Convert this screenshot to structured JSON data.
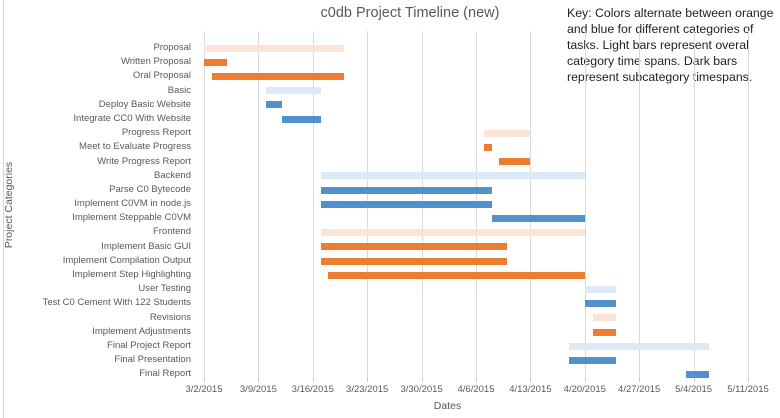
{
  "title": "c0db Project Timeline (new)",
  "key_note": {
    "lines": [
      "Key: Colors alternate between orange",
      "and blue for different categories of",
      "tasks. Light bars represent overal",
      "category time spans. Dark bars",
      "represent subcategory timespans."
    ]
  },
  "colors": {
    "orange": {
      "dark": "#ED7D31",
      "light": "#FBE3D5"
    },
    "blue": {
      "dark": "#5191CE",
      "light": "#DCE9F6"
    },
    "gridline": "#D9D9D9",
    "axis_text": "#595959",
    "title_text": "#595959",
    "key_text": "#1F1F1F"
  },
  "chart_data": {
    "type": "bar",
    "variant": "horizontal-gantt",
    "title": "c0db Project Timeline (new)",
    "xlabel": "Dates",
    "ylabel": "Project Categories",
    "legend": "none",
    "grid": "vertical-only",
    "x_domain": [
      "3/2/2015",
      "5/11/2015"
    ],
    "x_ticks": [
      "3/2/2015",
      "3/9/2015",
      "3/16/2015",
      "3/23/2015",
      "3/30/2015",
      "4/6/2015",
      "4/13/2015",
      "4/20/2015",
      "4/27/2015",
      "5/4/2015",
      "5/11/2015"
    ],
    "tasks": [
      {
        "label": "Proposal",
        "start": "3/2/2015",
        "end": "3/20/2015",
        "group": "orange",
        "shade": "light"
      },
      {
        "label": "Written Proposal",
        "start": "3/2/2015",
        "end": "3/5/2015",
        "group": "orange",
        "shade": "dark"
      },
      {
        "label": "Oral Proposal",
        "start": "3/3/2015",
        "end": "3/20/2015",
        "group": "orange",
        "shade": "dark"
      },
      {
        "label": "Basic",
        "start": "3/10/2015",
        "end": "3/17/2015",
        "group": "blue",
        "shade": "light"
      },
      {
        "label": "Deploy Basic Website",
        "start": "3/10/2015",
        "end": "3/12/2015",
        "group": "blue",
        "shade": "dark"
      },
      {
        "label": "Integrate CC0 With Website",
        "start": "3/12/2015",
        "end": "3/17/2015",
        "group": "blue",
        "shade": "dark"
      },
      {
        "label": "Progress Report",
        "start": "4/7/2015",
        "end": "4/13/2015",
        "group": "orange",
        "shade": "light"
      },
      {
        "label": "Meet to Evaluate Progress",
        "start": "4/7/2015",
        "end": "4/8/2015",
        "group": "orange",
        "shade": "dark"
      },
      {
        "label": "Write Progress Report",
        "start": "4/9/2015",
        "end": "4/13/2015",
        "group": "orange",
        "shade": "dark"
      },
      {
        "label": "Backend",
        "start": "3/17/2015",
        "end": "4/20/2015",
        "group": "blue",
        "shade": "light"
      },
      {
        "label": "Parse C0 Bytecode",
        "start": "3/17/2015",
        "end": "4/8/2015",
        "group": "blue",
        "shade": "dark"
      },
      {
        "label": "Implement C0VM in node.js",
        "start": "3/17/2015",
        "end": "4/8/2015",
        "group": "blue",
        "shade": "dark"
      },
      {
        "label": "Implement Steppable C0VM",
        "start": "4/8/2015",
        "end": "4/20/2015",
        "group": "blue",
        "shade": "dark"
      },
      {
        "label": "Frontend",
        "start": "3/17/2015",
        "end": "4/20/2015",
        "group": "orange",
        "shade": "light"
      },
      {
        "label": "Implement Basic GUI",
        "start": "3/17/2015",
        "end": "4/10/2015",
        "group": "orange",
        "shade": "dark"
      },
      {
        "label": "Implement Compilation Output",
        "start": "3/17/2015",
        "end": "4/10/2015",
        "group": "orange",
        "shade": "dark"
      },
      {
        "label": "Implement Step Highlighting",
        "start": "3/18/2015",
        "end": "4/20/2015",
        "group": "orange",
        "shade": "dark"
      },
      {
        "label": "User Testing",
        "start": "4/20/2015",
        "end": "4/24/2015",
        "group": "blue",
        "shade": "light"
      },
      {
        "label": "Test C0 Cement With 122 Students",
        "start": "4/20/2015",
        "end": "4/24/2015",
        "group": "blue",
        "shade": "dark"
      },
      {
        "label": "Revisions",
        "start": "4/21/2015",
        "end": "4/24/2015",
        "group": "orange",
        "shade": "light"
      },
      {
        "label": "Implement Adjustments",
        "start": "4/21/2015",
        "end": "4/24/2015",
        "group": "orange",
        "shade": "dark"
      },
      {
        "label": "Final Project Report",
        "start": "4/18/2015",
        "end": "5/6/2015",
        "group": "blue",
        "shade": "light"
      },
      {
        "label": "Final Presentation",
        "start": "4/18/2015",
        "end": "4/24/2015",
        "group": "blue",
        "shade": "dark"
      },
      {
        "label": "Final Report",
        "start": "5/3/2015",
        "end": "5/6/2015",
        "group": "blue",
        "shade": "dark"
      }
    ]
  }
}
